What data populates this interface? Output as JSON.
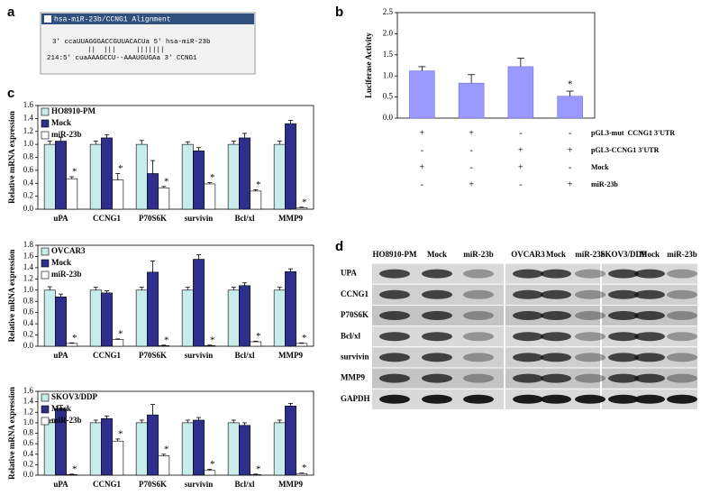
{
  "panel_labels": [
    "a",
    "b",
    "c",
    "d"
  ],
  "alignment": {
    "title": "hsa-miR-23b/CCNG1 Alignment",
    "lines": [
      "3' ccaUUAGGGACCGUUACACUa 5' hsa-miR-23b",
      "    ||  |||     |||||||",
      "214:5' cuaAAAGCCU--AAAUGUGAa 3' CCNG1"
    ]
  },
  "chart_data": [
    {
      "type": "bar",
      "ylabel": "Luciferase Activity",
      "values": [
        1.12,
        0.83,
        1.22,
        0.52
      ],
      "errors": [
        0.1,
        0.2,
        0.2,
        0.12
      ],
      "significance": [
        null,
        null,
        null,
        "*"
      ],
      "color": "#9999ff",
      "ylim": [
        0,
        2.5
      ],
      "yticks": [
        {
          "value": 0,
          "label": "0.0"
        },
        0.5,
        {
          "value": 1,
          "label": "1.0"
        },
        1.5,
        {
          "value": 2,
          "label": "2.0"
        },
        2.5
      ],
      "table": [
        {
          "label": "pGL3-mut  CCNG1 3'UTR",
          "cells": [
            "+",
            "+",
            "-",
            "-"
          ]
        },
        {
          "label": "pGL3-CCNG1 3'UTR",
          "cells": [
            "-",
            "-",
            "+",
            "+"
          ]
        },
        {
          "label": "Mock",
          "cells": [
            "+",
            "-",
            "+",
            "-"
          ]
        },
        {
          "label": "miR-23b",
          "cells": [
            "-",
            "+",
            "-",
            "+"
          ]
        }
      ]
    },
    {
      "type": "grouped_bar",
      "ylabel": "Relative mRNA expression",
      "categories": [
        "uPA",
        "CCNG1",
        "P70S6K",
        "survivin",
        "Bcl/xl",
        "MMP9"
      ],
      "series": [
        {
          "name": "HO8910-PM",
          "color": "#c8ecea",
          "values": [
            1.0,
            1.0,
            1.0,
            1.0,
            1.0,
            1.0
          ],
          "errors": [
            0.05,
            0.05,
            0.06,
            0.04,
            0.05,
            0.05
          ]
        },
        {
          "name": "Mock",
          "color": "#2e2e8c",
          "values": [
            1.05,
            1.1,
            0.55,
            0.9,
            1.1,
            1.32
          ],
          "errors": [
            0.06,
            0.05,
            0.2,
            0.05,
            0.07,
            0.05
          ]
        },
        {
          "name": "miR-23b",
          "color": "#ffffff",
          "values": [
            0.47,
            0.45,
            0.33,
            0.39,
            0.28,
            0.02
          ],
          "errors": [
            0.03,
            0.1,
            0.02,
            0.02,
            0.02,
            0.01
          ],
          "significance": [
            "*",
            "*",
            "*",
            "*",
            "*",
            "*"
          ]
        }
      ],
      "ylim": [
        0,
        1.6
      ],
      "yticks": [
        {
          "value": 0,
          "label": "0.0"
        },
        0.2,
        0.4,
        0.6,
        0.8,
        {
          "value": 1,
          "label": "1.0"
        },
        1.2,
        1.4,
        1.6
      ]
    },
    {
      "type": "grouped_bar",
      "ylabel": "Relative mRNA expression",
      "categories": [
        "uPA",
        "CCNG1",
        "P70S6K",
        "survivin",
        "Bcl/xl",
        "MMP9"
      ],
      "series": [
        {
          "name": "OVCAR3",
          "color": "#c8ecea",
          "values": [
            1.0,
            1.0,
            1.0,
            1.0,
            1.0,
            1.0
          ],
          "errors": [
            0.06,
            0.05,
            0.05,
            0.05,
            0.05,
            0.05
          ]
        },
        {
          "name": "Mock",
          "color": "#2e2e8c",
          "values": [
            0.88,
            0.95,
            1.32,
            1.55,
            1.08,
            1.33
          ],
          "errors": [
            0.05,
            0.04,
            0.2,
            0.08,
            0.05,
            0.05
          ]
        },
        {
          "name": "miR-23b",
          "color": "#ffffff",
          "values": [
            0.05,
            0.12,
            0.01,
            0.01,
            0.08,
            0.05
          ],
          "errors": [
            0.01,
            0.01,
            0.01,
            0.01,
            0.01,
            0.01
          ],
          "significance": [
            "*",
            "*",
            "*",
            "*",
            "*",
            "*"
          ]
        }
      ],
      "ylim": [
        0,
        1.8
      ],
      "yticks": [
        {
          "value": 0,
          "label": "0.0"
        },
        0.2,
        0.4,
        0.6,
        0.8,
        {
          "value": 1,
          "label": "1.0"
        },
        1.2,
        1.4,
        1.6,
        1.8
      ]
    },
    {
      "type": "grouped_bar",
      "ylabel": "Relative mRNA expression",
      "categories": [
        "uPA",
        "CCNG1",
        "P70S6K",
        "survivin",
        "Bcl/xl",
        "MMP9"
      ],
      "series": [
        {
          "name": "SKOV3/DDP",
          "color": "#c8ecea",
          "values": [
            1.0,
            1.0,
            1.0,
            1.0,
            1.0,
            1.0
          ],
          "errors": [
            0.05,
            0.05,
            0.05,
            0.05,
            0.05,
            0.05
          ]
        },
        {
          "name": "Mock",
          "color": "#2e2e8c",
          "values": [
            1.27,
            1.08,
            1.15,
            1.05,
            0.95,
            1.32
          ],
          "errors": [
            0.06,
            0.05,
            0.2,
            0.05,
            0.05,
            0.05
          ]
        },
        {
          "name": "miR-23b",
          "color": "#ffffff",
          "values": [
            0.01,
            0.65,
            0.37,
            0.09,
            0.01,
            0.03
          ],
          "errors": [
            0.01,
            0.04,
            0.03,
            0.02,
            0.01,
            0.01
          ],
          "significance": [
            "*",
            "*",
            "*",
            "*",
            "*",
            "*"
          ]
        }
      ],
      "ylim": [
        0,
        1.6
      ],
      "yticks": [
        {
          "value": 0,
          "label": "0.0"
        },
        0.2,
        0.4,
        0.6,
        0.8,
        {
          "value": 1,
          "label": "1.0"
        },
        1.2,
        1.4,
        1.6
      ]
    }
  ],
  "western_blot": {
    "columns": [
      "HO8910-PM",
      "Mock",
      "miR-23b",
      "OVCAR3",
      "Mock",
      "miR-23b",
      "SKOV3/DDP",
      "Mock",
      "miR-23b"
    ],
    "rows": [
      "UPA",
      "CCNG1",
      "P70S6K",
      "Bcl/xl",
      "survivin",
      "MMP9",
      "GAPDH"
    ]
  }
}
